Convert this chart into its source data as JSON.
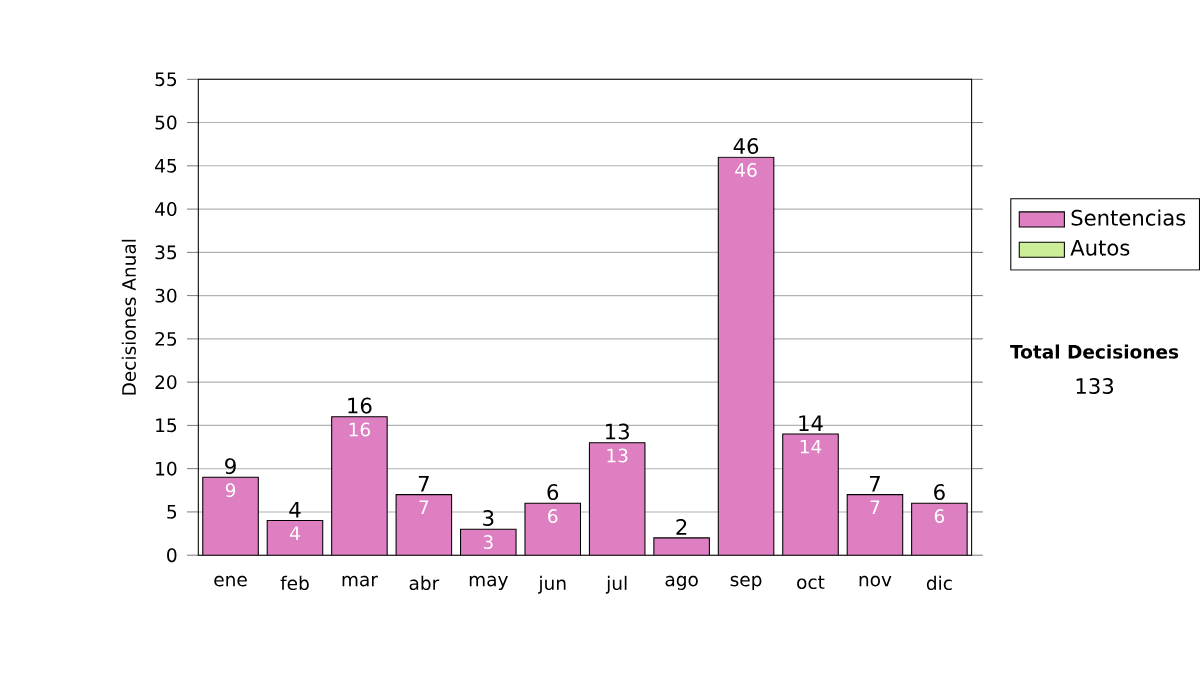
{
  "chart_data": {
    "type": "bar",
    "stacked": true,
    "ylabel": "Decisiones Anual",
    "categories": [
      "ene",
      "feb",
      "mar",
      "abr",
      "may",
      "jun",
      "jul",
      "ago",
      "sep",
      "oct",
      "nov",
      "dic"
    ],
    "series": [
      {
        "name": "Sentencias",
        "color": "#dd7fc0",
        "values": [
          9,
          4,
          16,
          7,
          3,
          6,
          13,
          2,
          46,
          14,
          7,
          6
        ],
        "value_labels": [
          "9",
          "4",
          "16",
          "7",
          "3",
          "6",
          "13",
          null,
          "46",
          "14",
          "7",
          "6"
        ]
      },
      {
        "name": "Autos",
        "color": "#ccee99",
        "values": [
          0,
          0,
          0,
          0,
          0,
          0,
          0,
          0,
          0,
          0,
          0,
          0
        ]
      }
    ],
    "totals": [
      "9",
      "4",
      "16",
      "7",
      "3",
      "6",
      "13",
      "2",
      "46",
      "14",
      "7",
      "6"
    ],
    "ylim": [
      0,
      55
    ],
    "yticks": [
      0,
      5,
      10,
      15,
      20,
      25,
      30,
      35,
      40,
      45,
      50,
      55
    ],
    "grid": "y",
    "legend": "right",
    "annotations": [
      "Total Decisiones",
      "133"
    ]
  }
}
